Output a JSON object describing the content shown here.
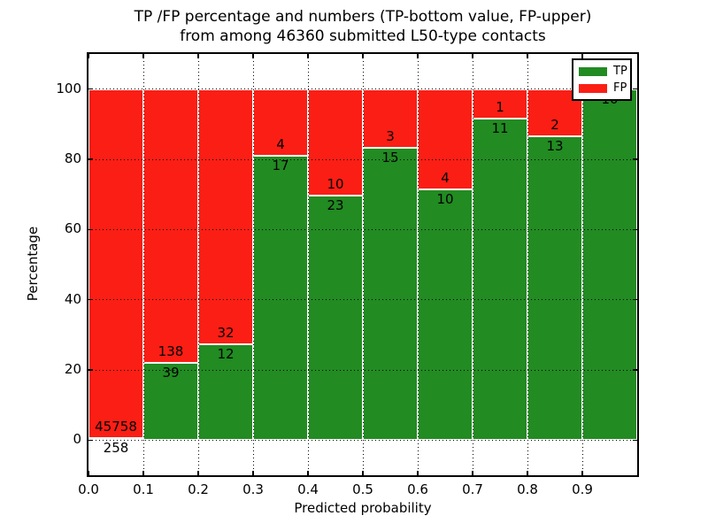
{
  "figure": {
    "title_line1": "TP /FP percentage and numbers (TP-bottom value, FP-upper)",
    "title_line2": "from among 46360 submitted L50-type contacts"
  },
  "chart_data": {
    "type": "bar",
    "subtype": "stacked-percentage-histogram",
    "title": "TP /FP percentage and numbers (TP-bottom value, FP-upper) from among 46360 submitted L50-type contacts",
    "xlabel": "Predicted probability",
    "ylabel": "Percentage",
    "xlim": [
      0.0,
      1.0
    ],
    "ylim": [
      -10,
      110
    ],
    "bin_width": 0.1,
    "categories": [
      "0.0-0.1",
      "0.1-0.2",
      "0.2-0.3",
      "0.3-0.4",
      "0.4-0.5",
      "0.5-0.6",
      "0.6-0.7",
      "0.7-0.8",
      "0.8-0.9",
      "0.9-1.0"
    ],
    "series": [
      {
        "name": "TP",
        "color": "#228B22",
        "counts": [
          258,
          39,
          12,
          17,
          23,
          15,
          10,
          11,
          13,
          10
        ]
      },
      {
        "name": "FP",
        "color": "#FB1E15",
        "counts": [
          45758,
          138,
          32,
          4,
          10,
          3,
          4,
          1,
          2,
          0
        ]
      }
    ],
    "tp_percent": [
      0.56,
      22.03,
      27.27,
      80.95,
      69.7,
      83.33,
      71.43,
      91.67,
      86.67,
      100.0
    ],
    "total_contacts": 46360,
    "xtick_labels": [
      "0.0",
      "0.1",
      "0.2",
      "0.3",
      "0.4",
      "0.5",
      "0.6",
      "0.7",
      "0.8",
      "0.9"
    ],
    "ytick_values": [
      0,
      20,
      40,
      60,
      80,
      100
    ],
    "grid": "dotted",
    "legend": {
      "position": "upper right",
      "entries": [
        {
          "label": "TP",
          "color": "#228B22"
        },
        {
          "label": "FP",
          "color": "#FB1E15"
        }
      ]
    }
  }
}
